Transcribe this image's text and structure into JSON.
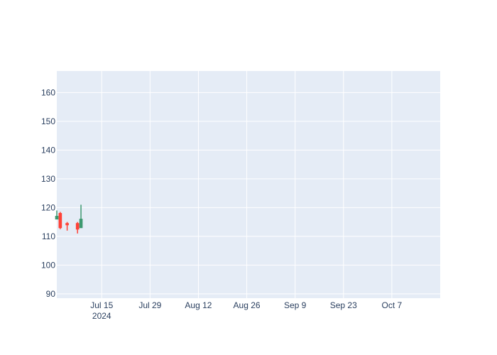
{
  "chart_data": {
    "type": "candlestick",
    "title": "",
    "xlabel": "",
    "ylabel": "",
    "y_ticks": [
      90,
      100,
      110,
      120,
      130,
      140,
      150,
      160
    ],
    "ylim": [
      88.5,
      167.5
    ],
    "xlim": [
      "2024-07-02",
      "2024-10-21"
    ],
    "x_ticks": [
      {
        "date": "2024-07-15",
        "label": "Jul 15",
        "sublabel": "2024"
      },
      {
        "date": "2024-07-29",
        "label": "Jul 29",
        "sublabel": ""
      },
      {
        "date": "2024-08-12",
        "label": "Aug 12",
        "sublabel": ""
      },
      {
        "date": "2024-08-26",
        "label": "Aug 26",
        "sublabel": ""
      },
      {
        "date": "2024-09-09",
        "label": "Sep 9",
        "sublabel": ""
      },
      {
        "date": "2024-09-23",
        "label": "Sep 23",
        "sublabel": ""
      },
      {
        "date": "2024-10-07",
        "label": "Oct 7",
        "sublabel": ""
      }
    ],
    "increasing_color": "#3D9970",
    "decreasing_color": "#FF4136",
    "plot_background": "#E5ECF6",
    "gridline_color": "#ffffff",
    "grid": true,
    "legend": "none",
    "candles": [
      {
        "date": "2024-07-02",
        "open": 116,
        "high": 119,
        "low": 116,
        "close": 117
      },
      {
        "date": "2024-07-03",
        "open": 118,
        "high": 118.5,
        "low": 112.5,
        "close": 113
      },
      {
        "date": "2024-07-05",
        "open": 114.5,
        "high": 115,
        "low": 112,
        "close": 114
      },
      {
        "date": "2024-07-08",
        "open": 114.5,
        "high": 115,
        "low": 111,
        "close": 112.5
      },
      {
        "date": "2024-07-09",
        "open": 113,
        "high": 121,
        "low": 113,
        "close": 116
      }
    ]
  }
}
